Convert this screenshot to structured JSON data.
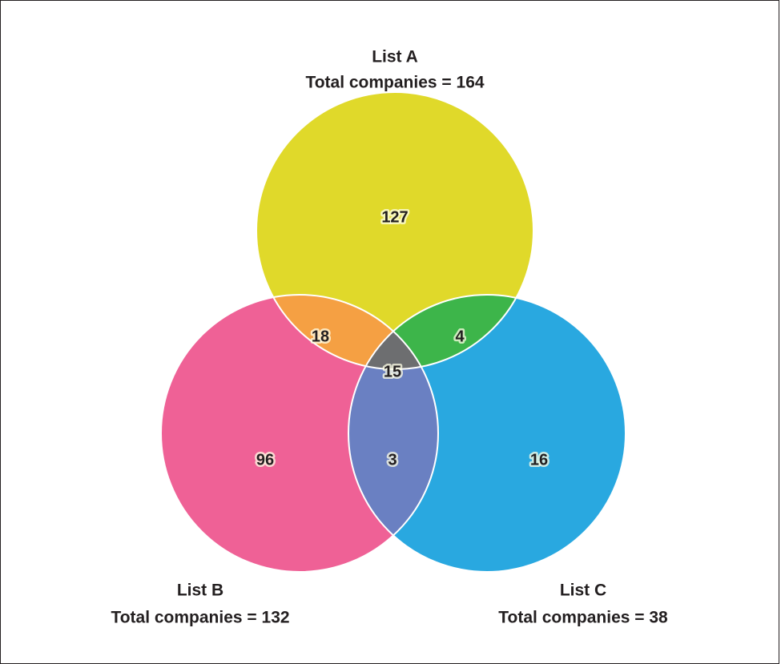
{
  "sets": [
    {
      "name": "List A",
      "total": "Total companies = 164"
    },
    {
      "name": "List B",
      "total": "Total companies = 132"
    },
    {
      "name": "List C",
      "total": "Total companies = 38"
    }
  ],
  "regions": {
    "a": 127,
    "b": 96,
    "c": 16,
    "ab": 18,
    "ac": 4,
    "bc": 3,
    "abc": 15
  }
}
